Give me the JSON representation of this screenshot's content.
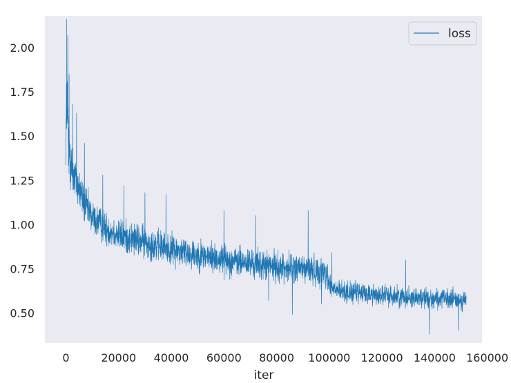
{
  "chart_data": {
    "type": "line",
    "title": "",
    "xlabel": "iter",
    "ylabel": "",
    "xlim": [
      -8000,
      158000
    ],
    "ylim": [
      0.33,
      2.18
    ],
    "xticks": [
      0,
      20000,
      40000,
      60000,
      80000,
      100000,
      120000,
      140000,
      160000
    ],
    "xtick_labels": [
      "0",
      "20000",
      "40000",
      "60000",
      "80000",
      "100000",
      "120000",
      "140000",
      "160000"
    ],
    "yticks": [
      0.5,
      0.75,
      1.0,
      1.25,
      1.5,
      1.75,
      2.0
    ],
    "ytick_labels": [
      "0.50",
      "0.75",
      "1.00",
      "1.25",
      "1.50",
      "1.75",
      "2.00"
    ],
    "grid": false,
    "legend": {
      "position": "top-right",
      "entries": [
        "loss"
      ]
    },
    "colors": {
      "background": "#eaeaf2",
      "line": "#1f77b4"
    },
    "series": [
      {
        "name": "loss",
        "trend": [
          [
            0,
            1.55
          ],
          [
            500,
            1.7
          ],
          [
            1000,
            1.45
          ],
          [
            2000,
            1.33
          ],
          [
            3000,
            1.27
          ],
          [
            5000,
            1.2
          ],
          [
            7000,
            1.12
          ],
          [
            10000,
            1.04
          ],
          [
            15000,
            0.98
          ],
          [
            20000,
            0.94
          ],
          [
            30000,
            0.9
          ],
          [
            40000,
            0.86
          ],
          [
            50000,
            0.83
          ],
          [
            60000,
            0.8
          ],
          [
            70000,
            0.78
          ],
          [
            80000,
            0.76
          ],
          [
            90000,
            0.75
          ],
          [
            99000,
            0.73
          ],
          [
            100500,
            0.64
          ],
          [
            105000,
            0.62
          ],
          [
            120000,
            0.6
          ],
          [
            140000,
            0.58
          ],
          [
            152000,
            0.57
          ]
        ],
        "band": [
          [
            0,
            0.35
          ],
          [
            2000,
            0.2
          ],
          [
            10000,
            0.14
          ],
          [
            40000,
            0.13
          ],
          [
            100000,
            0.12
          ],
          [
            101000,
            0.09
          ],
          [
            152000,
            0.08
          ]
        ],
        "spikes": [
          [
            300,
            2.16
          ],
          [
            700,
            2.07
          ],
          [
            1200,
            1.85
          ],
          [
            2500,
            1.68
          ],
          [
            4000,
            1.63
          ],
          [
            7000,
            1.46
          ],
          [
            14000,
            1.28
          ],
          [
            22000,
            1.22
          ],
          [
            30000,
            1.18
          ],
          [
            38000,
            1.17
          ],
          [
            60000,
            1.08
          ],
          [
            92000,
            1.08
          ],
          [
            72000,
            1.05
          ],
          [
            101000,
            0.84
          ],
          [
            129000,
            0.8
          ],
          [
            147000,
            0.65
          ],
          [
            138000,
            0.38
          ],
          [
            86000,
            0.49
          ],
          [
            97000,
            0.55
          ],
          [
            77000,
            0.57
          ],
          [
            149000,
            0.4
          ]
        ],
        "x_range": [
          0,
          152000
        ]
      }
    ]
  }
}
